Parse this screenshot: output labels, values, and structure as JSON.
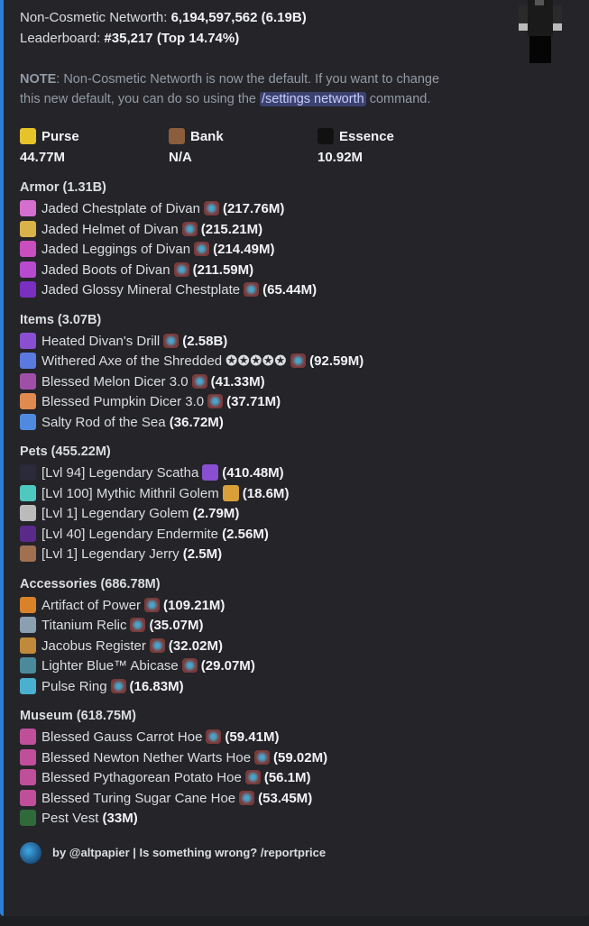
{
  "summary": {
    "networth_label": "Non-Cosmetic Networth:",
    "networth_value": "6,194,597,562",
    "networth_short": "(6.19B)",
    "leaderboard_label": "Leaderboard:",
    "leaderboard_rank": "#35,217",
    "leaderboard_top": "(Top 14.74%)"
  },
  "note": {
    "label": "NOTE",
    "text1": ": Non-Cosmetic Networth is now the default. If you want to change this new default, you can do so using the ",
    "command": "/settings networth",
    "text2": " command."
  },
  "fields": [
    {
      "icon": "gold-ingot-icon",
      "name": "Purse",
      "value": "44.77M",
      "color": "#e6c32a"
    },
    {
      "icon": "coin-bag-icon",
      "name": "Bank",
      "value": "N/A",
      "color": "#8a5e3c"
    },
    {
      "icon": "essence-icon",
      "name": "Essence",
      "value": "10.92M",
      "color": "#111111"
    }
  ],
  "sections": [
    {
      "title": "Armor (1.31B)",
      "items": [
        {
          "name": "Jaded Chestplate of Divan",
          "gem": true,
          "value": "217.76M",
          "color": "#d46fd0"
        },
        {
          "name": "Jaded Helmet of Divan",
          "gem": true,
          "value": "215.21M",
          "color": "#d9b34a"
        },
        {
          "name": "Jaded Leggings of Divan",
          "gem": true,
          "value": "214.49M",
          "color": "#c94fc0"
        },
        {
          "name": "Jaded Boots of Divan",
          "gem": true,
          "value": "211.59M",
          "color": "#b84ad0"
        },
        {
          "name": "Jaded Glossy Mineral Chestplate",
          "gem": true,
          "value": "65.44M",
          "color": "#7a2fc0"
        }
      ]
    },
    {
      "title": "Items (3.07B)",
      "items": [
        {
          "name": "Heated Divan's Drill",
          "gem": true,
          "value": "2.58B",
          "color": "#8a4fd0"
        },
        {
          "name": "Withered Axe of the Shredded",
          "extra": "✪✪✪✪✪",
          "gem": true,
          "value": "92.59M",
          "color": "#5a7ae0"
        },
        {
          "name": "Blessed Melon Dicer 3.0",
          "gem": true,
          "value": "41.33M",
          "color": "#a04fa8"
        },
        {
          "name": "Blessed Pumpkin Dicer 3.0",
          "gem": true,
          "value": "37.71M",
          "color": "#e08a4f"
        },
        {
          "name": "Salty Rod of the Sea",
          "value": "36.72M",
          "color": "#4f8ae0"
        }
      ]
    },
    {
      "title": "Pets (455.22M)",
      "items": [
        {
          "name": "[Lvl 94] Legendary Scatha",
          "held": "#8a4fd0",
          "value": "410.48M",
          "color": "#2a2a3a"
        },
        {
          "name": "[Lvl 100] Mythic Mithril Golem",
          "held": "#d9a03a",
          "value": "18.6M",
          "color": "#4fc8c0"
        },
        {
          "name": "[Lvl 1] Legendary Golem",
          "value": "2.79M",
          "color": "#bbbbbb"
        },
        {
          "name": "[Lvl 40] Legendary Endermite",
          "value": "2.56M",
          "color": "#5a2a8a"
        },
        {
          "name": "[Lvl 1] Legendary Jerry",
          "value": "2.5M",
          "color": "#a07050"
        }
      ]
    },
    {
      "title": "Accessories (686.78M)",
      "items": [
        {
          "name": "Artifact of Power",
          "gem": true,
          "value": "109.21M",
          "color": "#d9822a"
        },
        {
          "name": "Titanium Relic",
          "gem": true,
          "value": "35.07M",
          "color": "#8aa0b0"
        },
        {
          "name": "Jacobus Register",
          "gem": true,
          "value": "32.02M",
          "color": "#c08a3a"
        },
        {
          "name": "Lighter Blue™ Abicase",
          "gem": true,
          "value": "29.07M",
          "color": "#4a8a9a"
        },
        {
          "name": "Pulse Ring",
          "gem": true,
          "value": "16.83M",
          "color": "#4ab0d0"
        }
      ]
    },
    {
      "title": "Museum (618.75M)",
      "items": [
        {
          "name": "Blessed Gauss Carrot Hoe",
          "gem": true,
          "value": "59.41M",
          "color": "#c04f9a"
        },
        {
          "name": "Blessed Newton Nether Warts Hoe",
          "gem": true,
          "value": "59.02M",
          "color": "#c04f9a"
        },
        {
          "name": "Blessed Pythagorean Potato Hoe",
          "gem": true,
          "value": "56.1M",
          "color": "#c04f9a"
        },
        {
          "name": "Blessed Turing Sugar Cane Hoe",
          "gem": true,
          "value": "53.45M",
          "color": "#c04f9a"
        },
        {
          "name": "Pest Vest",
          "value": "33M",
          "color": "#2f6a3a"
        }
      ]
    }
  ],
  "footer": {
    "text": "by @altpapier | Is something wrong? /reportprice"
  }
}
